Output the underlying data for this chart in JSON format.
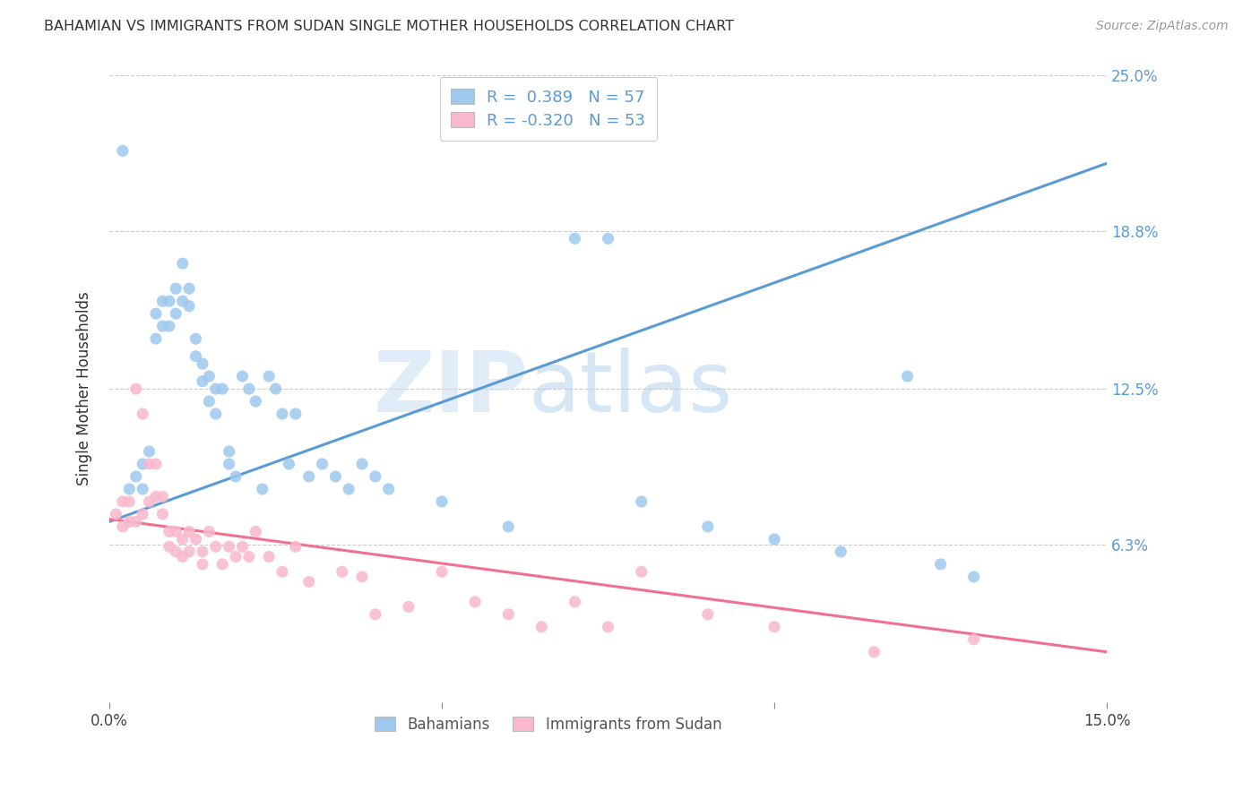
{
  "title": "BAHAMIAN VS IMMIGRANTS FROM SUDAN SINGLE MOTHER HOUSEHOLDS CORRELATION CHART",
  "source": "Source: ZipAtlas.com",
  "ylabel": "Single Mother Households",
  "xlim": [
    0.0,
    0.15
  ],
  "ylim": [
    0.0,
    0.25
  ],
  "xticks": [
    0.0,
    0.05,
    0.1,
    0.15
  ],
  "xtick_labels": [
    "0.0%",
    "",
    "",
    "15.0%"
  ],
  "ytick_labels_right": [
    "6.3%",
    "12.5%",
    "18.8%",
    "25.0%"
  ],
  "ytick_positions_right": [
    0.063,
    0.125,
    0.188,
    0.25
  ],
  "blue_color": "#9EC8EE",
  "pink_color": "#F9B8CB",
  "blue_line_color": "#5B9BD5",
  "pink_line_color": "#F07090",
  "R_blue": 0.389,
  "N_blue": 57,
  "R_pink": -0.32,
  "N_pink": 53,
  "watermark_zip": "ZIP",
  "watermark_atlas": "atlas",
  "legend_label_blue": "Bahamians",
  "legend_label_pink": "Immigrants from Sudan",
  "blue_line_y0": 0.072,
  "blue_line_y1": 0.215,
  "pink_line_y0": 0.073,
  "pink_line_y1": 0.02,
  "blue_points_x": [
    0.002,
    0.003,
    0.004,
    0.005,
    0.005,
    0.006,
    0.007,
    0.007,
    0.008,
    0.008,
    0.009,
    0.009,
    0.01,
    0.01,
    0.011,
    0.011,
    0.012,
    0.012,
    0.013,
    0.013,
    0.014,
    0.014,
    0.015,
    0.015,
    0.016,
    0.016,
    0.017,
    0.018,
    0.018,
    0.019,
    0.02,
    0.021,
    0.022,
    0.023,
    0.024,
    0.025,
    0.026,
    0.027,
    0.028,
    0.03,
    0.032,
    0.034,
    0.036,
    0.038,
    0.04,
    0.042,
    0.05,
    0.06,
    0.07,
    0.075,
    0.08,
    0.09,
    0.1,
    0.11,
    0.12,
    0.125,
    0.13
  ],
  "blue_points_y": [
    0.22,
    0.085,
    0.09,
    0.095,
    0.085,
    0.1,
    0.155,
    0.145,
    0.16,
    0.15,
    0.16,
    0.15,
    0.165,
    0.155,
    0.175,
    0.16,
    0.165,
    0.158,
    0.145,
    0.138,
    0.135,
    0.128,
    0.13,
    0.12,
    0.125,
    0.115,
    0.125,
    0.1,
    0.095,
    0.09,
    0.13,
    0.125,
    0.12,
    0.085,
    0.13,
    0.125,
    0.115,
    0.095,
    0.115,
    0.09,
    0.095,
    0.09,
    0.085,
    0.095,
    0.09,
    0.085,
    0.08,
    0.07,
    0.185,
    0.185,
    0.08,
    0.07,
    0.065,
    0.06,
    0.13,
    0.055,
    0.05
  ],
  "pink_points_x": [
    0.001,
    0.002,
    0.002,
    0.003,
    0.003,
    0.004,
    0.004,
    0.005,
    0.005,
    0.006,
    0.006,
    0.007,
    0.007,
    0.008,
    0.008,
    0.009,
    0.009,
    0.01,
    0.01,
    0.011,
    0.011,
    0.012,
    0.012,
    0.013,
    0.014,
    0.014,
    0.015,
    0.016,
    0.017,
    0.018,
    0.019,
    0.02,
    0.021,
    0.022,
    0.024,
    0.026,
    0.028,
    0.03,
    0.035,
    0.038,
    0.04,
    0.045,
    0.05,
    0.055,
    0.06,
    0.065,
    0.07,
    0.075,
    0.08,
    0.09,
    0.1,
    0.115,
    0.13
  ],
  "pink_points_y": [
    0.075,
    0.08,
    0.07,
    0.08,
    0.072,
    0.125,
    0.072,
    0.115,
    0.075,
    0.095,
    0.08,
    0.095,
    0.082,
    0.082,
    0.075,
    0.068,
    0.062,
    0.068,
    0.06,
    0.065,
    0.058,
    0.068,
    0.06,
    0.065,
    0.06,
    0.055,
    0.068,
    0.062,
    0.055,
    0.062,
    0.058,
    0.062,
    0.058,
    0.068,
    0.058,
    0.052,
    0.062,
    0.048,
    0.052,
    0.05,
    0.035,
    0.038,
    0.052,
    0.04,
    0.035,
    0.03,
    0.04,
    0.03,
    0.052,
    0.035,
    0.03,
    0.02,
    0.025
  ]
}
